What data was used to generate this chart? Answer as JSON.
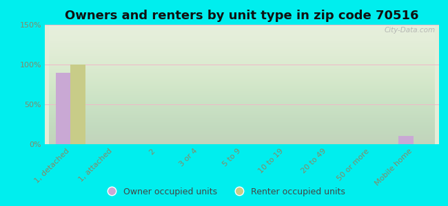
{
  "title": "Owners and renters by unit type in zip code 70516",
  "categories": [
    "1, detached",
    "1, attached",
    "2",
    "3 or 4",
    "5 to 9",
    "10 to 19",
    "20 to 49",
    "50 or more",
    "Mobile home"
  ],
  "owner_values": [
    90,
    0,
    0,
    0,
    0,
    0,
    0,
    0,
    10
  ],
  "renter_values": [
    100,
    0,
    0,
    0,
    0,
    0,
    0,
    0,
    0
  ],
  "owner_color": "#c9a8d4",
  "renter_color": "#c8cc88",
  "background_color": "#00eeee",
  "plot_bg": "#e4edd8",
  "ylim": [
    0,
    150
  ],
  "yticks": [
    0,
    50,
    100,
    150
  ],
  "ytick_labels": [
    "0%",
    "50%",
    "100%",
    "150%"
  ],
  "bar_width": 0.35,
  "watermark": "City-Data.com",
  "legend_owner": "Owner occupied units",
  "legend_renter": "Renter occupied units",
  "title_fontsize": 13,
  "tick_fontsize": 8,
  "legend_fontsize": 9,
  "grid_color": "#f0b8c8",
  "tick_color": "#888866"
}
